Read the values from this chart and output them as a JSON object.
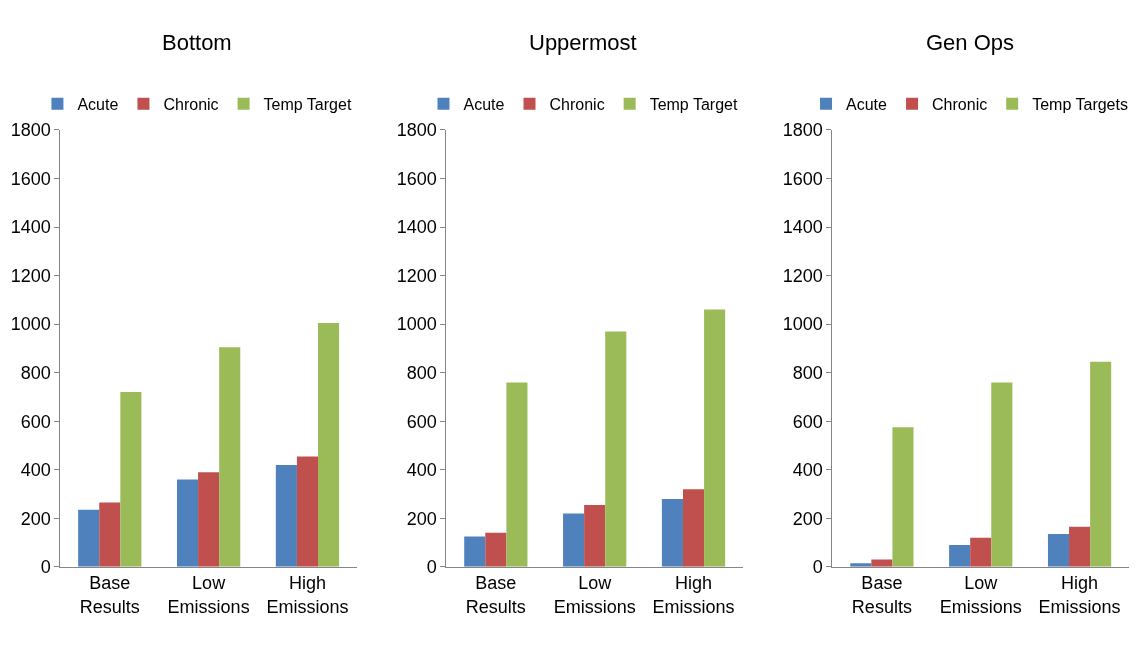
{
  "chart_data": [
    {
      "type": "bar",
      "title": "Bottom",
      "categories": [
        "Base Results",
        "Low Emissions",
        "High Emissions"
      ],
      "ylim": [
        0,
        1800
      ],
      "yticks": [
        0,
        200,
        400,
        600,
        800,
        1000,
        1200,
        1400,
        1600,
        1800
      ],
      "grid": false,
      "legend": "top",
      "series": [
        {
          "name": "Acute",
          "color": "#4f81bd",
          "values": [
            235,
            360,
            420
          ]
        },
        {
          "name": "Chronic",
          "color": "#c0504d",
          "values": [
            265,
            390,
            455
          ]
        },
        {
          "name": "Temp Target",
          "color": "#9bbb59",
          "values": [
            720,
            905,
            1005
          ]
        }
      ]
    },
    {
      "type": "bar",
      "title": "Uppermost",
      "categories": [
        "Base Results",
        "Low Emissions",
        "High Emissions"
      ],
      "ylim": [
        0,
        1800
      ],
      "yticks": [
        0,
        200,
        400,
        600,
        800,
        1000,
        1200,
        1400,
        1600,
        1800
      ],
      "grid": false,
      "legend": "top",
      "series": [
        {
          "name": "Acute",
          "color": "#4f81bd",
          "values": [
            125,
            220,
            280
          ]
        },
        {
          "name": "Chronic",
          "color": "#c0504d",
          "values": [
            140,
            255,
            320
          ]
        },
        {
          "name": "Temp Target",
          "color": "#9bbb59",
          "values": [
            760,
            970,
            1060
          ]
        }
      ]
    },
    {
      "type": "bar",
      "title": "Gen Ops",
      "categories": [
        "Base Results",
        "Low Emissions",
        "High Emissions"
      ],
      "ylim": [
        0,
        1800
      ],
      "yticks": [
        0,
        200,
        400,
        600,
        800,
        1000,
        1200,
        1400,
        1600,
        1800
      ],
      "grid": false,
      "legend": "top",
      "series": [
        {
          "name": "Acute",
          "color": "#4f81bd",
          "values": [
            15,
            90,
            135
          ]
        },
        {
          "name": "Chronic",
          "color": "#c0504d",
          "values": [
            30,
            120,
            165
          ]
        },
        {
          "name": "Temp Targets",
          "color": "#9bbb59",
          "values": [
            575,
            760,
            845
          ]
        }
      ]
    }
  ]
}
